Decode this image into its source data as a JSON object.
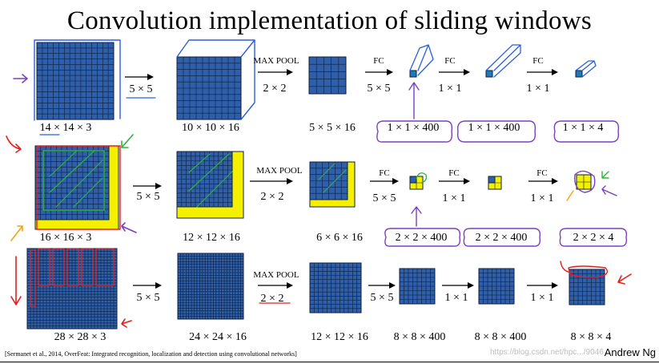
{
  "title": "Convolution implementation of sliding windows",
  "rows": [
    {
      "dims": [
        "14 × 14 × 3",
        "10 × 10 × 16",
        "5 × 5 × 16",
        "1 × 1 × 400",
        "1 × 1 × 400",
        "1 × 1 × 4"
      ],
      "ops": [
        "5 × 5",
        "MAX POOL",
        "2 × 2",
        "FC",
        "5 × 5",
        "FC",
        "1 × 1",
        "FC",
        "1 × 1"
      ]
    },
    {
      "dims": [
        "16 × 16 × 3",
        "12 × 12 × 16",
        "6 × 6 × 16",
        "2 × 2 × 400",
        "2 × 2 × 400",
        "2 × 2 × 4"
      ],
      "ops": [
        "5 × 5",
        "MAX POOL",
        "2 × 2",
        "FC",
        "5 × 5",
        "FC",
        "1 × 1",
        "FC",
        "1 × 1"
      ]
    },
    {
      "dims": [
        "28 × 28 × 3",
        "24 × 24 × 16",
        "12 × 12 × 16",
        "8 × 8 × 400",
        "8 × 8 × 400",
        "8 × 8 × 4"
      ],
      "ops": [
        "5 × 5",
        "MAX POOL",
        "2 × 2",
        "5 × 5",
        "1 × 1",
        "1 × 1"
      ]
    }
  ],
  "citation": "[Sermanet et al., 2014, OverFeat: Integrated recognition, localization and detection using convolutional networks]",
  "author": "Andrew Ng",
  "watermark": "https://blog.csdn.net/hpc.../9046",
  "colors": {
    "grid_fill": "#2f5fa8",
    "grid_line": "#0b1f3f",
    "highlight": "#f5f000",
    "ink_purple": "#7b3fbf",
    "ink_blue": "#2a5de0",
    "ink_red": "#e51e1e",
    "ink_green": "#2fb33b",
    "ink_orange": "#f2a30f",
    "cyan_unit": "#1e7ab8"
  }
}
